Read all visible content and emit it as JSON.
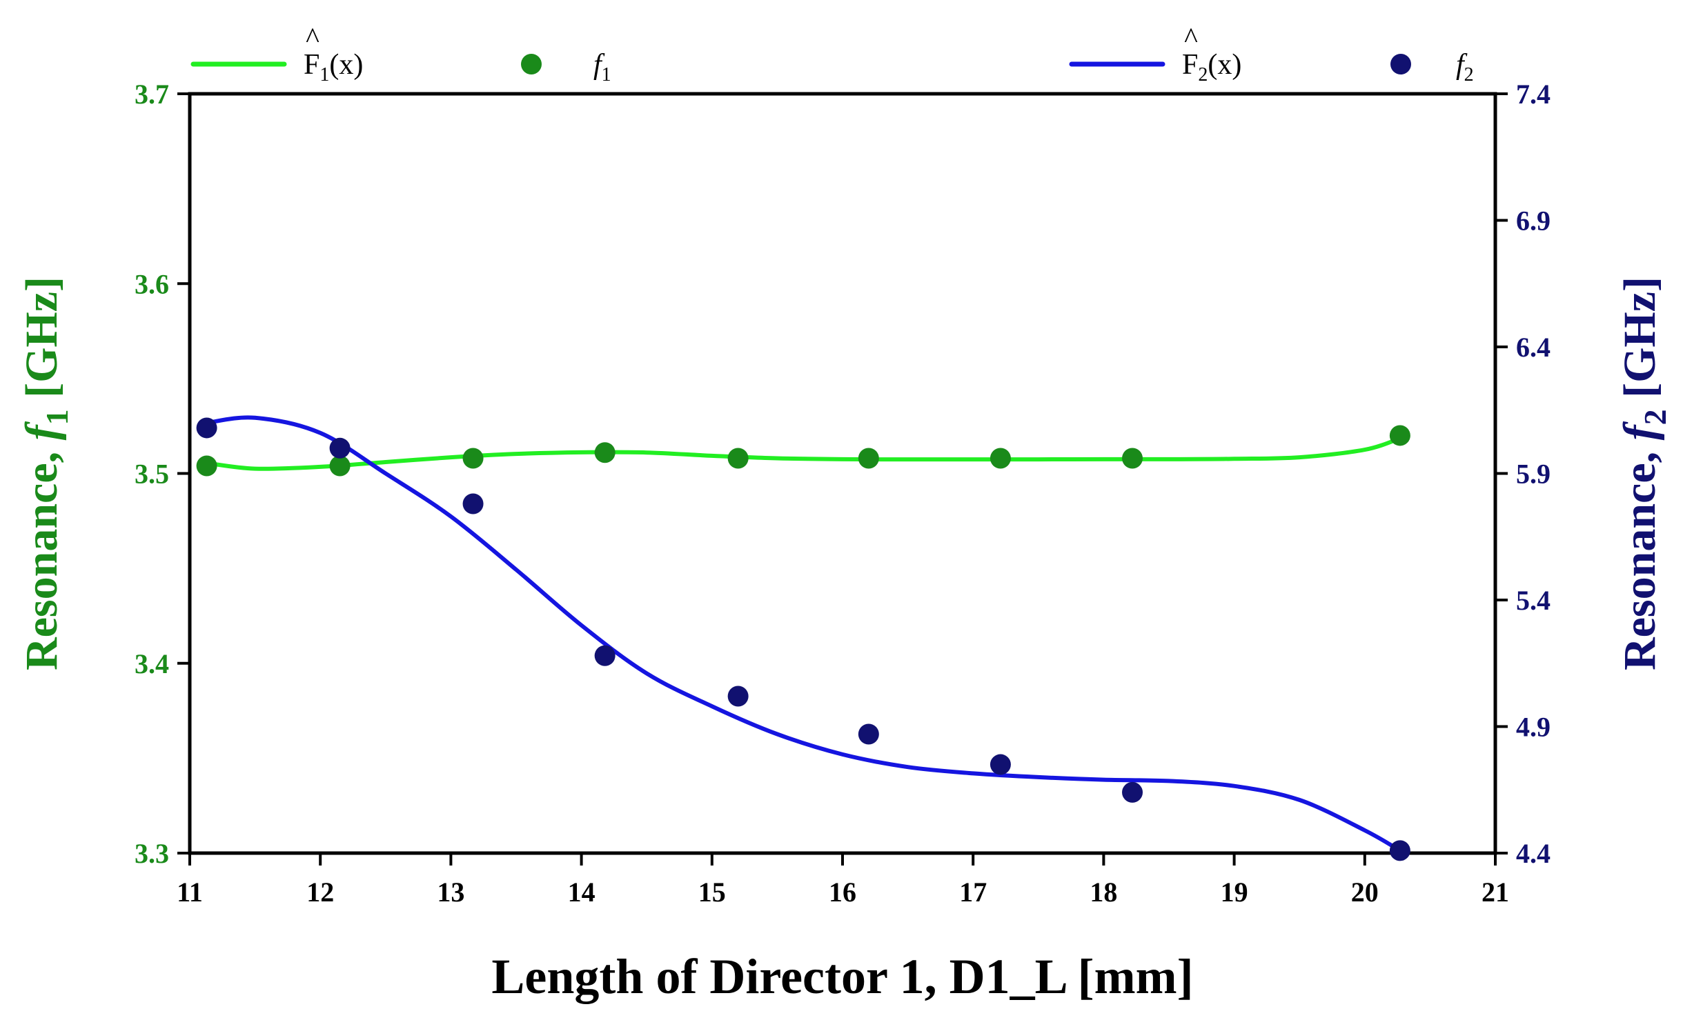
{
  "chart_data": {
    "type": "scatter",
    "title": "",
    "xlabel": "Length of Director 1, D1_L [mm]",
    "ylabel_left": {
      "prefix": "Resonance, ",
      "var": "f",
      "sub": "1",
      "suffix": " [GHz]"
    },
    "ylabel_right": {
      "prefix": "Resonance, ",
      "var": "f",
      "sub": "2",
      "suffix": " [GHz]"
    },
    "xlim": [
      11,
      21
    ],
    "ylim_left": [
      3.3,
      3.7
    ],
    "ylim_right": [
      4.4,
      7.4
    ],
    "x_ticks": [
      "11",
      "12",
      "13",
      "14",
      "15",
      "16",
      "17",
      "18",
      "19",
      "20",
      "21"
    ],
    "y_ticks_left": [
      "3.3",
      "3.4",
      "3.5",
      "3.6",
      "3.7"
    ],
    "y_ticks_right": [
      "4.4",
      "4.9",
      "5.4",
      "5.9",
      "6.4",
      "6.9",
      "7.4"
    ],
    "legend": [
      {
        "kind": "line",
        "base": "F",
        "hat": "^",
        "sub": "1",
        "arg": "(x)",
        "color": "#22ee22"
      },
      {
        "kind": "marker",
        "var": "f",
        "sub": "1",
        "color": "#1a8a1a"
      },
      {
        "kind": "line",
        "base": "F",
        "hat": "^",
        "sub": "2",
        "arg": "(x)",
        "color": "#1515e0"
      },
      {
        "kind": "marker",
        "var": "f",
        "sub": "2",
        "color": "#111170"
      }
    ],
    "series": [
      {
        "name": "f1",
        "axis": "left",
        "style": "points",
        "color": "#1a8a1a",
        "x": [
          11.13,
          12.15,
          13.17,
          14.18,
          15.2,
          16.2,
          17.21,
          18.22,
          20.27
        ],
        "y": [
          3.504,
          3.504,
          3.508,
          3.511,
          3.508,
          3.508,
          3.508,
          3.508,
          3.52
        ]
      },
      {
        "name": "F1_fit",
        "axis": "left",
        "style": "line",
        "color": "#22ee22",
        "x": [
          11.13,
          11.5,
          12.0,
          12.5,
          13.0,
          13.5,
          14.0,
          14.5,
          15.0,
          15.5,
          16.0,
          16.5,
          17.0,
          17.5,
          18.0,
          18.5,
          19.0,
          19.5,
          20.0,
          20.27
        ],
        "y": [
          3.5055,
          3.5025,
          3.5035,
          3.506,
          3.5085,
          3.5103,
          3.5111,
          3.511,
          3.5093,
          3.508,
          3.5075,
          3.5074,
          3.5074,
          3.5074,
          3.5075,
          3.5075,
          3.5077,
          3.5085,
          3.5125,
          3.5185
        ]
      },
      {
        "name": "f2",
        "axis": "right",
        "style": "points",
        "color": "#111170",
        "x": [
          11.13,
          12.15,
          13.17,
          14.18,
          15.2,
          16.2,
          17.21,
          18.22,
          20.27
        ],
        "y": [
          6.08,
          6.0,
          5.78,
          5.18,
          5.02,
          4.87,
          4.75,
          4.64,
          4.41
        ]
      },
      {
        "name": "F2_fit",
        "axis": "right",
        "style": "line",
        "color": "#1515e0",
        "x": [
          11.13,
          11.5,
          12.0,
          12.5,
          13.0,
          13.5,
          14.0,
          14.5,
          15.0,
          15.5,
          16.0,
          16.5,
          17.0,
          17.5,
          18.0,
          18.5,
          19.0,
          19.5,
          20.0,
          20.27
        ],
        "y": [
          6.1,
          6.12,
          6.06,
          5.9,
          5.73,
          5.52,
          5.3,
          5.11,
          4.98,
          4.87,
          4.79,
          4.74,
          4.715,
          4.7,
          4.69,
          4.685,
          4.665,
          4.61,
          4.49,
          4.41
        ]
      }
    ]
  }
}
